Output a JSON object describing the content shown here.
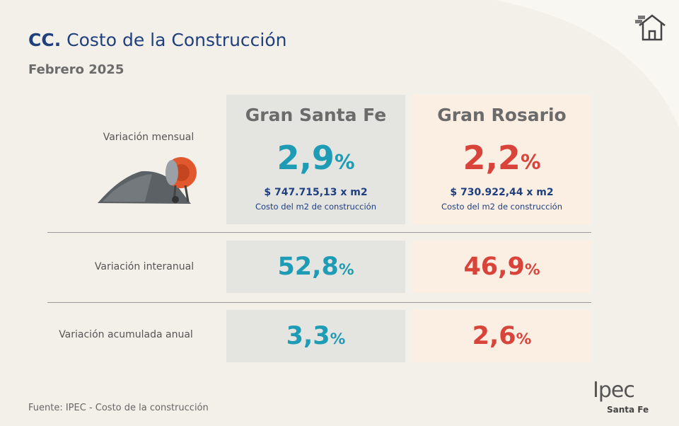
{
  "header": {
    "code": "CC.",
    "title": "Costo de la Construcción",
    "period": "Febrero 2025"
  },
  "table": {
    "columns": [
      "Gran Santa Fe",
      "Gran Rosario"
    ],
    "unit": "%",
    "cost_caption": "Costo del m2 de construcción",
    "rows": [
      {
        "label": "Variación mensual",
        "cells": [
          {
            "value": "2,9",
            "cost": "$ 747.715,13 x m2"
          },
          {
            "value": "2,2",
            "cost": "$ 730.922,44 x m2"
          }
        ]
      },
      {
        "label": "Variación interanual",
        "cells": [
          {
            "value": "52,8"
          },
          {
            "value": "46,9"
          }
        ]
      },
      {
        "label": "Variación acumulada anual",
        "cells": [
          {
            "value": "3,3"
          },
          {
            "value": "2,6"
          }
        ]
      }
    ]
  },
  "footer": {
    "source": "Fuente: IPEC - Costo de la construcción",
    "logo": "Ipec",
    "logo_subtitle": "Santa Fe"
  }
}
